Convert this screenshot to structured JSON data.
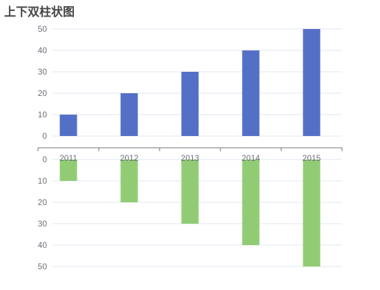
{
  "chart_data": {
    "type": "bar",
    "title": "上下双柱状图",
    "categories": [
      "2011",
      "2012",
      "2013",
      "2014",
      "2015"
    ],
    "upper": {
      "values": [
        10,
        20,
        30,
        40,
        50
      ],
      "ylim": [
        0,
        50
      ],
      "yticks": [
        "0",
        "10",
        "20",
        "30",
        "40",
        "50"
      ],
      "color": "#5470c6"
    },
    "lower": {
      "values": [
        10,
        20,
        30,
        40,
        50
      ],
      "ylim": [
        0,
        50
      ],
      "yticks": [
        "0",
        "10",
        "20",
        "30",
        "40",
        "50"
      ],
      "color": "#91cc75",
      "inverted": true
    },
    "grid": true
  }
}
